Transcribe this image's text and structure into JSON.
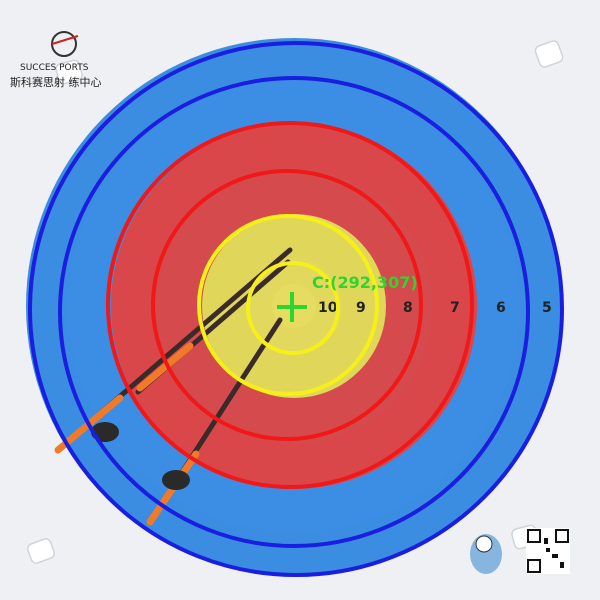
{
  "logo": {
    "name": "sports-center-logo",
    "line1": "SUCCES  PORTS",
    "line2": "斯科赛思射   练中心"
  },
  "target": {
    "ring_numbers": [
      "10",
      "9",
      "8",
      "7",
      "6",
      "5"
    ],
    "center_label": "C:(292,307)"
  },
  "overlay_colors": {
    "blue_ring": "#1a1ee0",
    "red_ring": "#f01818",
    "yellow_ring": "#f5f019",
    "center_marker": "#2fd42f"
  },
  "face_colors": {
    "blue": "#3a8de0",
    "red": "#d9474a",
    "yellow": "#e0d65a",
    "paper": "#eef0f3"
  }
}
